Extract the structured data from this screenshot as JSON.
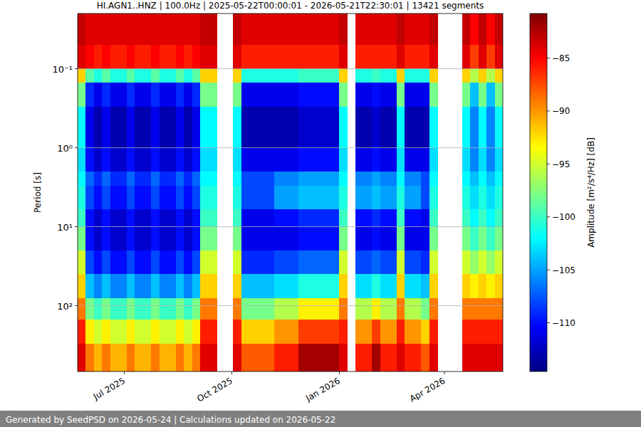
{
  "chart_data": {
    "type": "heatmap",
    "title": "HI.AGN1..HNZ | 100.0Hz | 2025-05-22T00:00:01 - 2026-05-21T22:30:01 | 13421 segments",
    "y_label": "Period [s]",
    "footer": "Generated by SeedPSD on 2026-05-24 | Calculations updated on 2026-05-22",
    "log": "y",
    "grid": true,
    "xlim": [
      "2025-05-22",
      "2026-05-21"
    ],
    "xticks": [
      {
        "value": "2025-07-01",
        "label": "Jul 2025"
      },
      {
        "value": "2025-10-01",
        "label": "Oct 2025"
      },
      {
        "value": "2026-01-01",
        "label": "Jan 2026"
      },
      {
        "value": "2026-04-01",
        "label": "Apr 2026"
      }
    ],
    "ylim": [
      0.02,
      680
    ],
    "yticks": [
      {
        "value": 0.1,
        "label": "10⁻¹"
      },
      {
        "value": 1,
        "label": "10⁰"
      },
      {
        "value": 10,
        "label": "10¹"
      },
      {
        "value": 100,
        "label": "10²"
      }
    ],
    "x_bins": [
      "2025-05-22",
      "2025-05-29",
      "2025-06-05",
      "2025-06-12",
      "2025-06-19",
      "2025-06-26",
      "2025-07-03",
      "2025-07-10",
      "2025-07-17",
      "2025-07-24",
      "2025-07-31",
      "2025-08-07",
      "2025-08-14",
      "2025-08-21",
      "2025-08-28",
      "2025-09-04",
      "2025-09-11",
      "2025-09-18",
      "2025-09-25",
      "2025-10-02",
      "2025-10-09",
      "2025-10-16",
      "2025-10-23",
      "2025-10-30",
      "2025-11-06",
      "2025-11-13",
      "2025-11-20",
      "2025-11-27",
      "2025-12-04",
      "2025-12-11",
      "2025-12-18",
      "2025-12-25",
      "2026-01-01",
      "2026-01-08",
      "2026-01-15",
      "2026-01-22",
      "2026-01-29",
      "2026-02-05",
      "2026-02-12",
      "2026-02-19",
      "2026-02-26",
      "2026-03-05",
      "2026-03-12",
      "2026-03-19",
      "2026-03-26",
      "2026-04-02",
      "2026-04-09",
      "2026-04-16",
      "2026-04-23",
      "2026-04-30",
      "2026-05-07",
      "2026-05-14",
      "2026-05-21"
    ],
    "y_bins": [
      0.02,
      0.05,
      0.1,
      0.15,
      0.3,
      1,
      2,
      3,
      6,
      10,
      20,
      40,
      80,
      150,
      300,
      680
    ],
    "cells": [
      [
        -83,
        -84,
        -92,
        -98,
        -102,
        -103,
        -102,
        -101,
        -100,
        -98,
        -95,
        -92,
        -89,
        -86,
        -84
      ],
      [
        -84,
        -85,
        -99,
        -109,
        -111,
        -110,
        -107,
        -108,
        -110,
        -110,
        -108,
        -104,
        -98,
        -93,
        -89
      ],
      [
        -84,
        -86,
        -101,
        -111,
        -113,
        -112,
        -109,
        -110,
        -112,
        -112,
        -110,
        -106,
        -100,
        -95,
        -91
      ],
      [
        -84,
        -85,
        -99,
        -109,
        -111,
        -110,
        -107,
        -108,
        -110,
        -110,
        -108,
        -104,
        -98,
        -93,
        -89
      ],
      [
        -84,
        -86,
        -101,
        -111,
        -113,
        -112,
        -109,
        -110,
        -112,
        -112,
        -110,
        -106,
        -100,
        -95,
        -91
      ],
      [
        -84,
        -86,
        -101,
        -111,
        -113,
        -112,
        -109,
        -110,
        -112,
        -112,
        -110,
        -106,
        -100,
        -95,
        -91
      ],
      [
        -84,
        -85,
        -99,
        -109,
        -111,
        -110,
        -107,
        -108,
        -110,
        -110,
        -108,
        -104,
        -98,
        -93,
        -89
      ],
      [
        -84,
        -86,
        -101,
        -111,
        -113,
        -112,
        -109,
        -110,
        -112,
        -112,
        -110,
        -106,
        -100,
        -95,
        -91
      ],
      [
        -84,
        -86,
        -101,
        -111,
        -113,
        -112,
        -109,
        -110,
        -112,
        -112,
        -110,
        -106,
        -100,
        -95,
        -91
      ],
      [
        -84,
        -85,
        -99,
        -109,
        -111,
        -110,
        -107,
        -108,
        -110,
        -110,
        -108,
        -104,
        -98,
        -93,
        -89
      ],
      [
        -84,
        -86,
        -101,
        -111,
        -113,
        -112,
        -109,
        -110,
        -112,
        -112,
        -110,
        -106,
        -100,
        -95,
        -91
      ],
      [
        -84,
        -86,
        -101,
        -111,
        -113,
        -112,
        -109,
        -110,
        -112,
        -112,
        -110,
        -106,
        -100,
        -95,
        -91
      ],
      [
        -84,
        -85,
        -99,
        -109,
        -111,
        -110,
        -107,
        -108,
        -110,
        -110,
        -108,
        -104,
        -98,
        -93,
        -89
      ],
      [
        -84,
        -86,
        -101,
        -111,
        -113,
        -112,
        -109,
        -110,
        -112,
        -112,
        -110,
        -106,
        -100,
        -95,
        -91
      ],
      [
        -84,
        -85,
        -99,
        -109,
        -111,
        -110,
        -107,
        -108,
        -110,
        -110,
        -108,
        -104,
        -98,
        -93,
        -89
      ],
      [
        -83,
        -84,
        -92,
        -98,
        -102,
        -103,
        -102,
        -101,
        -100,
        -98,
        -95,
        -92,
        -89,
        -86,
        -84
      ],
      [
        -83,
        -84,
        -92,
        -98,
        -102,
        -103,
        -102,
        -101,
        -100,
        -98,
        -95,
        -92,
        -89,
        -86,
        -84
      ],
      null,
      null,
      [
        -83,
        -84,
        -92,
        -98,
        -102,
        -103,
        -102,
        -101,
        -100,
        -98,
        -95,
        -92,
        -89,
        -86,
        -84
      ],
      [
        -84,
        -86,
        -101,
        -111,
        -113,
        -111,
        -108,
        -108,
        -111,
        -111,
        -109,
        -104,
        -98,
        -92,
        -88
      ],
      [
        -84,
        -86,
        -101,
        -111,
        -113,
        -111,
        -108,
        -108,
        -111,
        -111,
        -109,
        -104,
        -98,
        -92,
        -88
      ],
      [
        -84,
        -86,
        -101,
        -111,
        -113,
        -111,
        -108,
        -108,
        -111,
        -111,
        -109,
        -104,
        -98,
        -92,
        -88
      ],
      [
        -84,
        -86,
        -101,
        -111,
        -113,
        -111,
        -108,
        -108,
        -111,
        -111,
        -109,
        -104,
        -98,
        -92,
        -88
      ],
      [
        -84,
        -86,
        -101,
        -111,
        -113,
        -111,
        -106,
        -105,
        -110,
        -111,
        -108,
        -103,
        -96,
        -90,
        -86
      ],
      [
        -84,
        -86,
        -101,
        -111,
        -113,
        -111,
        -106,
        -105,
        -110,
        -111,
        -108,
        -103,
        -96,
        -90,
        -86
      ],
      [
        -84,
        -86,
        -101,
        -111,
        -113,
        -111,
        -106,
        -105,
        -110,
        -111,
        -108,
        -103,
        -96,
        -90,
        -86
      ],
      [
        -84,
        -86,
        -100,
        -110,
        -112,
        -110,
        -105,
        -104,
        -109,
        -110,
        -107,
        -101,
        -93,
        -87,
        -82
      ],
      [
        -84,
        -86,
        -100,
        -110,
        -112,
        -110,
        -105,
        -104,
        -109,
        -110,
        -107,
        -101,
        -93,
        -87,
        -82
      ],
      [
        -84,
        -86,
        -100,
        -110,
        -112,
        -110,
        -105,
        -104,
        -109,
        -110,
        -107,
        -101,
        -93,
        -87,
        -82
      ],
      [
        -84,
        -86,
        -100,
        -110,
        -112,
        -110,
        -105,
        -104,
        -109,
        -110,
        -107,
        -101,
        -93,
        -87,
        -82
      ],
      [
        -84,
        -86,
        -100,
        -110,
        -112,
        -110,
        -105,
        -104,
        -109,
        -110,
        -107,
        -101,
        -93,
        -87,
        -82
      ],
      [
        -83,
        -84,
        -92,
        -98,
        -102,
        -103,
        -102,
        -101,
        -100,
        -98,
        -95,
        -92,
        -89,
        -86,
        -84
      ],
      null,
      [
        -84,
        -86,
        -101,
        -111,
        -113,
        -111,
        -106,
        -105,
        -110,
        -111,
        -108,
        -103,
        -96,
        -90,
        -86
      ],
      [
        -84,
        -86,
        -101,
        -111,
        -113,
        -111,
        -106,
        -105,
        -110,
        -111,
        -108,
        -103,
        -96,
        -90,
        -86
      ],
      [
        -84,
        -86,
        -100,
        -110,
        -112,
        -110,
        -105,
        -104,
        -109,
        -110,
        -107,
        -101,
        -93,
        -87,
        -82
      ],
      [
        -84,
        -86,
        -101,
        -111,
        -113,
        -111,
        -106,
        -105,
        -110,
        -111,
        -108,
        -103,
        -96,
        -90,
        -86
      ],
      [
        -84,
        -86,
        -101,
        -111,
        -113,
        -111,
        -106,
        -105,
        -110,
        -111,
        -108,
        -103,
        -96,
        -90,
        -86
      ],
      [
        -83,
        -84,
        -92,
        -98,
        -102,
        -103,
        -102,
        -101,
        -100,
        -98,
        -95,
        -92,
        -89,
        -86,
        -84
      ],
      [
        -84,
        -86,
        -101,
        -111,
        -113,
        -111,
        -106,
        -105,
        -110,
        -111,
        -108,
        -103,
        -96,
        -90,
        -86
      ],
      [
        -84,
        -86,
        -101,
        -111,
        -113,
        -111,
        -106,
        -105,
        -110,
        -111,
        -108,
        -103,
        -96,
        -90,
        -86
      ],
      [
        -84,
        -86,
        -101,
        -111,
        -113,
        -111,
        -108,
        -108,
        -111,
        -111,
        -109,
        -104,
        -98,
        -92,
        -88
      ],
      [
        -83,
        -84,
        -92,
        -98,
        -102,
        -103,
        -102,
        -101,
        -100,
        -98,
        -95,
        -92,
        -89,
        -86,
        -84
      ],
      null,
      null,
      null,
      [
        -83,
        -84,
        -92,
        -98,
        -102,
        -103,
        -102,
        -101,
        -100,
        -98,
        -95,
        -92,
        -89,
        -86,
        -84
      ],
      [
        -85,
        -87,
        -96,
        -104,
        -106,
        -106,
        -104,
        -103,
        -102,
        -100,
        -97,
        -93,
        -89,
        -86,
        -84
      ],
      [
        -83,
        -84,
        -92,
        -98,
        -102,
        -103,
        -102,
        -101,
        -100,
        -98,
        -95,
        -92,
        -89,
        -86,
        -84
      ],
      [
        -85,
        -87,
        -96,
        -104,
        -106,
        -106,
        -104,
        -103,
        -102,
        -100,
        -97,
        -93,
        -89,
        -86,
        -84
      ],
      [
        -83,
        -84,
        -92,
        -98,
        -102,
        -103,
        -102,
        -101,
        -100,
        -98,
        -95,
        -92,
        -89,
        -86,
        -84
      ]
    ],
    "colorbar": {
      "label": "Amplitude [m²/s⁴/Hz] [dB]",
      "range": [
        -114.6,
        -80.8
      ],
      "ticks": [
        {
          "value": -110,
          "label": "−110"
        },
        {
          "value": -105,
          "label": "−105"
        },
        {
          "value": -100,
          "label": "−100"
        },
        {
          "value": -95,
          "label": "−95"
        },
        {
          "value": -90,
          "label": "−90"
        },
        {
          "value": -85,
          "label": "−85"
        }
      ]
    }
  }
}
